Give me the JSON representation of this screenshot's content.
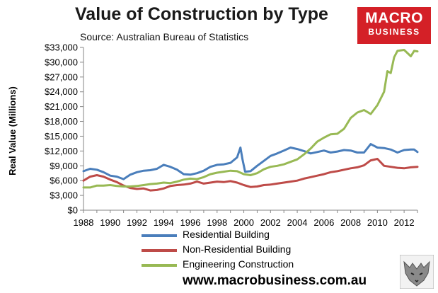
{
  "brand": {
    "logo_top": "MACRO",
    "logo_bottom": "BUSINESS",
    "website": "www.macrobusiness.com.au"
  },
  "colors": {
    "residential": "#4a7ebb",
    "non_residential": "#be4b48",
    "engineering": "#98b954",
    "brand_red": "#d42027"
  },
  "chart_data": {
    "type": "line",
    "title": "Value of Construction by Type",
    "subtitle": "Source: Australian Bureau of Statistics",
    "xlabel": "",
    "ylabel": "Real Value (Millions)",
    "xlim": [
      1988,
      2013
    ],
    "ylim": [
      0,
      33000
    ],
    "y_ticks": [
      0,
      3000,
      6000,
      9000,
      12000,
      15000,
      18000,
      21000,
      24000,
      27000,
      30000,
      33000
    ],
    "y_tick_labels": [
      "$0",
      "$3,000",
      "$6,000",
      "$9,000",
      "$12,000",
      "$15,000",
      "$18,000",
      "$21,000",
      "$24,000",
      "$27,000",
      "$30,000",
      "$33,000"
    ],
    "x_ticks": [
      1988,
      1990,
      1992,
      1994,
      1996,
      1998,
      2000,
      2002,
      2004,
      2006,
      2008,
      2010,
      2012
    ],
    "x_tick_labels": [
      "1988",
      "1990",
      "1992",
      "1994",
      "1996",
      "1998",
      "2000",
      "2002",
      "2004",
      "2006",
      "2008",
      "2010",
      "2012"
    ],
    "grid": false,
    "legend_position": "bottom",
    "series": [
      {
        "name": "Residential Building",
        "color": "#4a7ebb",
        "points": [
          [
            1988.0,
            7900
          ],
          [
            1988.5,
            8400
          ],
          [
            1989.0,
            8200
          ],
          [
            1989.5,
            7700
          ],
          [
            1990.0,
            7000
          ],
          [
            1990.5,
            6800
          ],
          [
            1991.0,
            6300
          ],
          [
            1991.5,
            7200
          ],
          [
            1992.0,
            7700
          ],
          [
            1992.5,
            8000
          ],
          [
            1993.0,
            8100
          ],
          [
            1993.5,
            8400
          ],
          [
            1994.0,
            9200
          ],
          [
            1994.5,
            8800
          ],
          [
            1995.0,
            8200
          ],
          [
            1995.5,
            7300
          ],
          [
            1996.0,
            7200
          ],
          [
            1996.5,
            7500
          ],
          [
            1997.0,
            8000
          ],
          [
            1997.5,
            8800
          ],
          [
            1998.0,
            9200
          ],
          [
            1998.5,
            9300
          ],
          [
            1999.0,
            9600
          ],
          [
            1999.5,
            10700
          ],
          [
            1999.75,
            12700
          ],
          [
            1999.9,
            10300
          ],
          [
            2000.1,
            7800
          ],
          [
            2000.5,
            7900
          ],
          [
            2001.0,
            9000
          ],
          [
            2001.5,
            10000
          ],
          [
            2002.0,
            11000
          ],
          [
            2002.5,
            11500
          ],
          [
            2003.0,
            12100
          ],
          [
            2003.5,
            12700
          ],
          [
            2004.0,
            12400
          ],
          [
            2004.5,
            12000
          ],
          [
            2005.0,
            11500
          ],
          [
            2005.5,
            11800
          ],
          [
            2006.0,
            12100
          ],
          [
            2006.5,
            11700
          ],
          [
            2007.0,
            11900
          ],
          [
            2007.5,
            12200
          ],
          [
            2008.0,
            12100
          ],
          [
            2008.5,
            11700
          ],
          [
            2009.0,
            11700
          ],
          [
            2009.5,
            13400
          ],
          [
            2010.0,
            12700
          ],
          [
            2010.5,
            12600
          ],
          [
            2011.0,
            12300
          ],
          [
            2011.5,
            11700
          ],
          [
            2012.0,
            12200
          ],
          [
            2012.5,
            12300
          ],
          [
            2012.75,
            12300
          ],
          [
            2013.0,
            11800
          ]
        ]
      },
      {
        "name": "Non-Residential Building",
        "color": "#be4b48",
        "points": [
          [
            1988.0,
            6000
          ],
          [
            1988.5,
            6800
          ],
          [
            1989.0,
            7100
          ],
          [
            1989.5,
            6800
          ],
          [
            1990.0,
            6200
          ],
          [
            1990.5,
            5700
          ],
          [
            1991.0,
            5000
          ],
          [
            1991.5,
            4500
          ],
          [
            1992.0,
            4300
          ],
          [
            1992.5,
            4400
          ],
          [
            1993.0,
            4000
          ],
          [
            1993.5,
            4100
          ],
          [
            1994.0,
            4400
          ],
          [
            1994.5,
            4900
          ],
          [
            1995.0,
            5100
          ],
          [
            1995.5,
            5200
          ],
          [
            1996.0,
            5400
          ],
          [
            1996.5,
            5800
          ],
          [
            1997.0,
            5400
          ],
          [
            1997.5,
            5600
          ],
          [
            1998.0,
            5800
          ],
          [
            1998.5,
            5700
          ],
          [
            1999.0,
            5900
          ],
          [
            1999.5,
            5600
          ],
          [
            2000.0,
            5100
          ],
          [
            2000.5,
            4700
          ],
          [
            2001.0,
            4800
          ],
          [
            2001.5,
            5100
          ],
          [
            2002.0,
            5200
          ],
          [
            2002.5,
            5400
          ],
          [
            2003.0,
            5600
          ],
          [
            2003.5,
            5800
          ],
          [
            2004.0,
            6000
          ],
          [
            2004.5,
            6400
          ],
          [
            2005.0,
            6700
          ],
          [
            2005.5,
            7000
          ],
          [
            2006.0,
            7300
          ],
          [
            2006.5,
            7700
          ],
          [
            2007.0,
            7900
          ],
          [
            2007.5,
            8200
          ],
          [
            2008.0,
            8500
          ],
          [
            2008.5,
            8700
          ],
          [
            2009.0,
            9100
          ],
          [
            2009.5,
            10100
          ],
          [
            2010.0,
            10400
          ],
          [
            2010.5,
            9000
          ],
          [
            2011.0,
            8800
          ],
          [
            2011.5,
            8600
          ],
          [
            2012.0,
            8500
          ],
          [
            2012.5,
            8700
          ],
          [
            2013.0,
            8800
          ]
        ]
      },
      {
        "name": "Engineering Construction",
        "color": "#98b954",
        "points": [
          [
            1988.0,
            4600
          ],
          [
            1988.5,
            4600
          ],
          [
            1989.0,
            5000
          ],
          [
            1989.5,
            5000
          ],
          [
            1990.0,
            5100
          ],
          [
            1990.5,
            4900
          ],
          [
            1991.0,
            4800
          ],
          [
            1991.5,
            4800
          ],
          [
            1992.0,
            4900
          ],
          [
            1992.5,
            5100
          ],
          [
            1993.0,
            5300
          ],
          [
            1993.5,
            5400
          ],
          [
            1994.0,
            5600
          ],
          [
            1994.5,
            5500
          ],
          [
            1995.0,
            5800
          ],
          [
            1995.5,
            6200
          ],
          [
            1996.0,
            6400
          ],
          [
            1996.5,
            6300
          ],
          [
            1997.0,
            6700
          ],
          [
            1997.5,
            7300
          ],
          [
            1998.0,
            7600
          ],
          [
            1998.5,
            7800
          ],
          [
            1999.0,
            8000
          ],
          [
            1999.5,
            7900
          ],
          [
            2000.0,
            7300
          ],
          [
            2000.5,
            7100
          ],
          [
            2001.0,
            7500
          ],
          [
            2001.5,
            8300
          ],
          [
            2002.0,
            8800
          ],
          [
            2002.5,
            9000
          ],
          [
            2003.0,
            9300
          ],
          [
            2003.5,
            9800
          ],
          [
            2004.0,
            10300
          ],
          [
            2004.5,
            11300
          ],
          [
            2005.0,
            12500
          ],
          [
            2005.5,
            13900
          ],
          [
            2006.0,
            14700
          ],
          [
            2006.5,
            15400
          ],
          [
            2007.0,
            15500
          ],
          [
            2007.5,
            16500
          ],
          [
            2008.0,
            18700
          ],
          [
            2008.5,
            19800
          ],
          [
            2009.0,
            20300
          ],
          [
            2009.5,
            19500
          ],
          [
            2010.0,
            21300
          ],
          [
            2010.5,
            24000
          ],
          [
            2010.75,
            28200
          ],
          [
            2011.0,
            27800
          ],
          [
            2011.25,
            31000
          ],
          [
            2011.5,
            32300
          ],
          [
            2012.0,
            32500
          ],
          [
            2012.5,
            31200
          ],
          [
            2012.75,
            32300
          ],
          [
            2013.0,
            32200
          ]
        ]
      }
    ]
  }
}
